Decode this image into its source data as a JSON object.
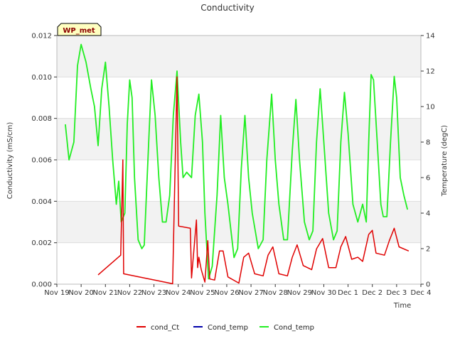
{
  "chart_data": {
    "type": "line",
    "title": "Conductivity",
    "xlabel": "Time",
    "ylabel": "Conductivity (mS/cm)",
    "y2label": "Temperature (degC)",
    "badge": "WP_met",
    "x_ticks": [
      "Nov 19",
      "Nov 20",
      "Nov 21",
      "Nov 22",
      "Nov 23",
      "Nov 24",
      "Nov 25",
      "Nov 26",
      "Nov 27",
      "Nov 28",
      "Nov 29",
      "Nov 30",
      "Dec 1",
      "Dec 2",
      "Dec 3",
      "Dec 4"
    ],
    "xlim": [
      0,
      15
    ],
    "ylim": [
      0,
      0.012
    ],
    "y_ticks": [
      "0.000",
      "0.002",
      "0.004",
      "0.006",
      "0.008",
      "0.010",
      "0.012"
    ],
    "y2lim": [
      0,
      14
    ],
    "y2_ticks": [
      "0",
      "2",
      "4",
      "6",
      "8",
      "10",
      "12",
      "14"
    ],
    "grid": true,
    "legend_position": "bottom",
    "colors": {
      "cond_Ct": "#e00000",
      "Cond_temp_1": "#0000aa",
      "Cond_temp_2": "#22ee22",
      "band": "#f2f2f2",
      "badge_bg": "#ffffc0"
    },
    "series": [
      {
        "name": "cond_Ct",
        "axis": "left",
        "color": "#e00000",
        "points": [
          [
            1.7,
            0.00045
          ],
          [
            2.63,
            0.0014
          ],
          [
            2.72,
            0.006
          ],
          [
            2.75,
            0.0005
          ],
          [
            4.77,
            2e-05
          ],
          [
            4.95,
            0.01
          ],
          [
            5.02,
            0.0028
          ],
          [
            5.5,
            0.0027
          ],
          [
            5.55,
            0.0003
          ],
          [
            5.75,
            0.0031
          ],
          [
            5.8,
            0.0008
          ],
          [
            5.85,
            0.0013
          ],
          [
            5.95,
            0.0007
          ],
          [
            6.1,
            0.0001
          ],
          [
            6.22,
            0.0021
          ],
          [
            6.3,
            0.00025
          ],
          [
            6.5,
            0.0002
          ],
          [
            6.7,
            0.0016
          ],
          [
            6.85,
            0.0016
          ],
          [
            7.05,
            0.00035
          ],
          [
            7.5,
            5e-05
          ],
          [
            7.7,
            0.0013
          ],
          [
            7.9,
            0.0015
          ],
          [
            8.15,
            0.0005
          ],
          [
            8.5,
            0.0004
          ],
          [
            8.7,
            0.0014
          ],
          [
            8.9,
            0.0018
          ],
          [
            9.15,
            0.0005
          ],
          [
            9.5,
            0.0004
          ],
          [
            9.7,
            0.0013
          ],
          [
            9.9,
            0.0019
          ],
          [
            10.15,
            0.0009
          ],
          [
            10.5,
            0.0007
          ],
          [
            10.7,
            0.0017
          ],
          [
            10.95,
            0.0022
          ],
          [
            11.2,
            0.0008
          ],
          [
            11.5,
            0.0008
          ],
          [
            11.7,
            0.0018
          ],
          [
            11.9,
            0.0023
          ],
          [
            12.15,
            0.0012
          ],
          [
            12.4,
            0.0013
          ],
          [
            12.6,
            0.0011
          ],
          [
            12.85,
            0.0024
          ],
          [
            13.0,
            0.0026
          ],
          [
            13.15,
            0.0015
          ],
          [
            13.5,
            0.0014
          ],
          [
            13.7,
            0.0021
          ],
          [
            13.9,
            0.0027
          ],
          [
            14.1,
            0.0018
          ],
          [
            14.5,
            0.0016
          ]
        ]
      },
      {
        "name": "Cond_temp",
        "axis": "right",
        "color": "#0000aa",
        "points": []
      },
      {
        "name": "Cond_temp",
        "axis": "right",
        "color": "#22ee22",
        "points": [
          [
            0.35,
            9.0
          ],
          [
            0.5,
            7.0
          ],
          [
            0.7,
            8.0
          ],
          [
            0.85,
            12.3
          ],
          [
            1.0,
            13.5
          ],
          [
            1.2,
            12.5
          ],
          [
            1.4,
            11.0
          ],
          [
            1.55,
            10.0
          ],
          [
            1.7,
            7.8
          ],
          [
            1.85,
            11.0
          ],
          [
            2.0,
            12.5
          ],
          [
            2.15,
            10.0
          ],
          [
            2.3,
            7.0
          ],
          [
            2.45,
            4.5
          ],
          [
            2.55,
            5.8
          ],
          [
            2.65,
            3.5
          ],
          [
            2.8,
            4.0
          ],
          [
            2.9,
            9.0
          ],
          [
            3.0,
            11.5
          ],
          [
            3.1,
            10.5
          ],
          [
            3.2,
            6.0
          ],
          [
            3.35,
            2.5
          ],
          [
            3.5,
            2.0
          ],
          [
            3.6,
            2.2
          ],
          [
            3.8,
            8.5
          ],
          [
            3.9,
            11.5
          ],
          [
            4.05,
            9.5
          ],
          [
            4.2,
            6.0
          ],
          [
            4.35,
            3.5
          ],
          [
            4.5,
            3.5
          ],
          [
            4.65,
            5.0
          ],
          [
            4.8,
            9.5
          ],
          [
            4.95,
            12.0
          ],
          [
            5.1,
            8.0
          ],
          [
            5.2,
            6.0
          ],
          [
            5.35,
            6.3
          ],
          [
            5.55,
            6.0
          ],
          [
            5.7,
            9.5
          ],
          [
            5.85,
            10.7
          ],
          [
            6.0,
            8.0
          ],
          [
            6.1,
            4.0
          ],
          [
            6.25,
            0.3
          ],
          [
            6.4,
            1.0
          ],
          [
            6.6,
            5.0
          ],
          [
            6.75,
            9.5
          ],
          [
            6.9,
            6.0
          ],
          [
            7.05,
            4.5
          ],
          [
            7.3,
            1.5
          ],
          [
            7.45,
            2.0
          ],
          [
            7.6,
            6.5
          ],
          [
            7.75,
            9.5
          ],
          [
            7.9,
            6.0
          ],
          [
            8.05,
            4.0
          ],
          [
            8.3,
            2.0
          ],
          [
            8.5,
            2.5
          ],
          [
            8.65,
            7.0
          ],
          [
            8.85,
            10.7
          ],
          [
            9.0,
            7.0
          ],
          [
            9.15,
            4.5
          ],
          [
            9.35,
            2.5
          ],
          [
            9.5,
            2.5
          ],
          [
            9.7,
            7.5
          ],
          [
            9.85,
            10.4
          ],
          [
            10.0,
            7.0
          ],
          [
            10.2,
            3.5
          ],
          [
            10.4,
            2.5
          ],
          [
            10.55,
            3.0
          ],
          [
            10.7,
            8.0
          ],
          [
            10.85,
            11.0
          ],
          [
            11.0,
            8.0
          ],
          [
            11.2,
            4.0
          ],
          [
            11.4,
            2.5
          ],
          [
            11.55,
            3.0
          ],
          [
            11.7,
            8.0
          ],
          [
            11.85,
            10.8
          ],
          [
            12.0,
            8.5
          ],
          [
            12.2,
            4.5
          ],
          [
            12.4,
            3.5
          ],
          [
            12.6,
            4.5
          ],
          [
            12.75,
            3.5
          ],
          [
            12.85,
            8.0
          ],
          [
            12.95,
            11.8
          ],
          [
            13.05,
            11.5
          ],
          [
            13.2,
            8.0
          ],
          [
            13.35,
            4.5
          ],
          [
            13.45,
            3.8
          ],
          [
            13.6,
            3.8
          ],
          [
            13.75,
            8.0
          ],
          [
            13.9,
            11.7
          ],
          [
            14.0,
            10.5
          ],
          [
            14.15,
            6.0
          ],
          [
            14.3,
            5.0
          ],
          [
            14.45,
            4.2
          ]
        ]
      }
    ]
  }
}
